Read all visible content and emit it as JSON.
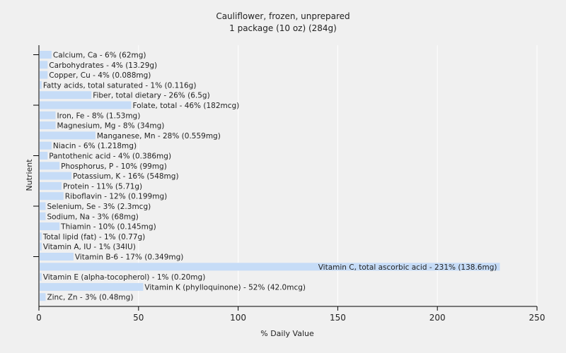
{
  "chart_data": {
    "type": "bar",
    "orientation": "horizontal",
    "title": "Cauliflower, frozen, unprepared",
    "subtitle": "1 package (10 oz) (284g)",
    "xlabel": "% Daily Value",
    "ylabel": "Nutrient",
    "xlim": [
      0,
      250
    ],
    "xticks": [
      0,
      50,
      100,
      150,
      200,
      250
    ],
    "grid": true,
    "colors": {
      "bar": "#c6dcf7",
      "grid": "#ffffff",
      "background": "#f0f0f0",
      "axis": "#000000"
    },
    "categories": [
      "Calcium, Ca",
      "Carbohydrates",
      "Copper, Cu",
      "Fatty acids, total saturated",
      "Fiber, total dietary",
      "Folate, total",
      "Iron, Fe",
      "Magnesium, Mg",
      "Manganese, Mn",
      "Niacin",
      "Pantothenic acid",
      "Phosphorus, P",
      "Potassium, K",
      "Protein",
      "Riboflavin",
      "Selenium, Se",
      "Sodium, Na",
      "Thiamin",
      "Total lipid (fat)",
      "Vitamin A, IU",
      "Vitamin B-6",
      "Vitamin C, total ascorbic acid",
      "Vitamin E (alpha-tocopherol)",
      "Vitamin K (phylloquinone)",
      "Zinc, Zn"
    ],
    "values": [
      6,
      4,
      4,
      1,
      26,
      46,
      8,
      8,
      28,
      6,
      4,
      10,
      16,
      11,
      12,
      3,
      3,
      10,
      1,
      1,
      17,
      231,
      1,
      52,
      3
    ],
    "labels": [
      "Calcium, Ca - 6% (62mg)",
      "Carbohydrates - 4% (13.29g)",
      "Copper, Cu - 4% (0.088mg)",
      "Fatty acids, total saturated - 1% (0.116g)",
      "Fiber, total dietary - 26% (6.5g)",
      "Folate, total - 46% (182mcg)",
      "Iron, Fe - 8% (1.53mg)",
      "Magnesium, Mg - 8% (34mg)",
      "Manganese, Mn - 28% (0.559mg)",
      "Niacin - 6% (1.218mg)",
      "Pantothenic acid - 4% (0.386mg)",
      "Phosphorus, P - 10% (99mg)",
      "Potassium, K - 16% (548mg)",
      "Protein - 11% (5.71g)",
      "Riboflavin - 12% (0.199mg)",
      "Selenium, Se - 3% (2.3mcg)",
      "Sodium, Na - 3% (68mg)",
      "Thiamin - 10% (0.145mg)",
      "Total lipid (fat) - 1% (0.77g)",
      "Vitamin A, IU - 1% (34IU)",
      "Vitamin B-6 - 17% (0.349mg)",
      "Vitamin C, total ascorbic acid - 231% (138.6mg)",
      "Vitamin E (alpha-tocopherol) - 1% (0.20mg)",
      "Vitamin K (phylloquinone) - 52% (42.0mcg)",
      "Zinc, Zn - 3% (0.48mg)"
    ]
  }
}
